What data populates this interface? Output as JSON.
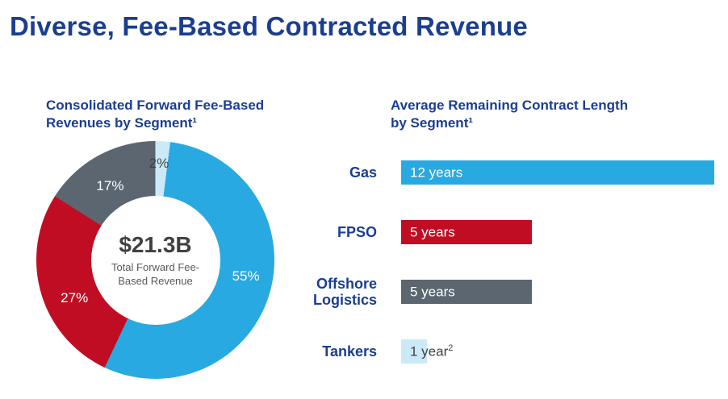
{
  "page": {
    "title": "Diverse, Fee-Based Contracted Revenue"
  },
  "left_section": {
    "heading_line1": "Consolidated Forward Fee-Based",
    "heading_line2": "Revenues by Segment¹",
    "center_value": "$21.3B",
    "center_caption_line1": "Total Forward Fee-",
    "center_caption_line2": "Based Revenue"
  },
  "right_section": {
    "heading_line1": "Average Remaining Contract Length",
    "heading_line2": "by Segment¹"
  },
  "colors": {
    "heading_blue": "#1B3E90",
    "gas_blue": "#29A9E1",
    "fpso_red": "#C00D23",
    "offshore_gray": "#5B6670",
    "tankers_light_blue": "#CCE9F8",
    "center_text_gray": "#414042"
  },
  "chart_data": [
    {
      "type": "pie",
      "title": "Consolidated Forward Fee-Based Revenues by Segment",
      "center_label": "$21.3B",
      "center_caption": "Total Forward Fee-Based Revenue",
      "slices": [
        {
          "label": "2%",
          "value": 2,
          "color": "#CCE9F8",
          "label_color": "#414042"
        },
        {
          "label": "55%",
          "value": 55,
          "color": "#29A9E1",
          "label_color": "#FFFFFF"
        },
        {
          "label": "27%",
          "value": 27,
          "color": "#C00D23",
          "label_color": "#FFFFFF"
        },
        {
          "label": "17%",
          "value": 17,
          "color": "#5B6670",
          "label_color": "#FFFFFF"
        }
      ]
    },
    {
      "type": "bar",
      "title": "Average Remaining Contract Length by Segment",
      "categories": [
        "Gas",
        "FPSO",
        "Offshore Logistics",
        "Tankers"
      ],
      "values": [
        12,
        5,
        5,
        1
      ],
      "value_labels": [
        "12 years",
        "5 years",
        "5 years",
        "1 year"
      ],
      "superscripts": [
        "",
        "",
        "",
        "2"
      ],
      "colors": [
        "#29A9E1",
        "#C00D23",
        "#5B6670",
        "#CCE9F8"
      ],
      "text_colors": [
        "#FFFFFF",
        "#FFFFFF",
        "#FFFFFF",
        "#414042"
      ],
      "xlim": [
        0,
        12
      ],
      "unit": "years",
      "legend": "none",
      "grid": false
    }
  ]
}
